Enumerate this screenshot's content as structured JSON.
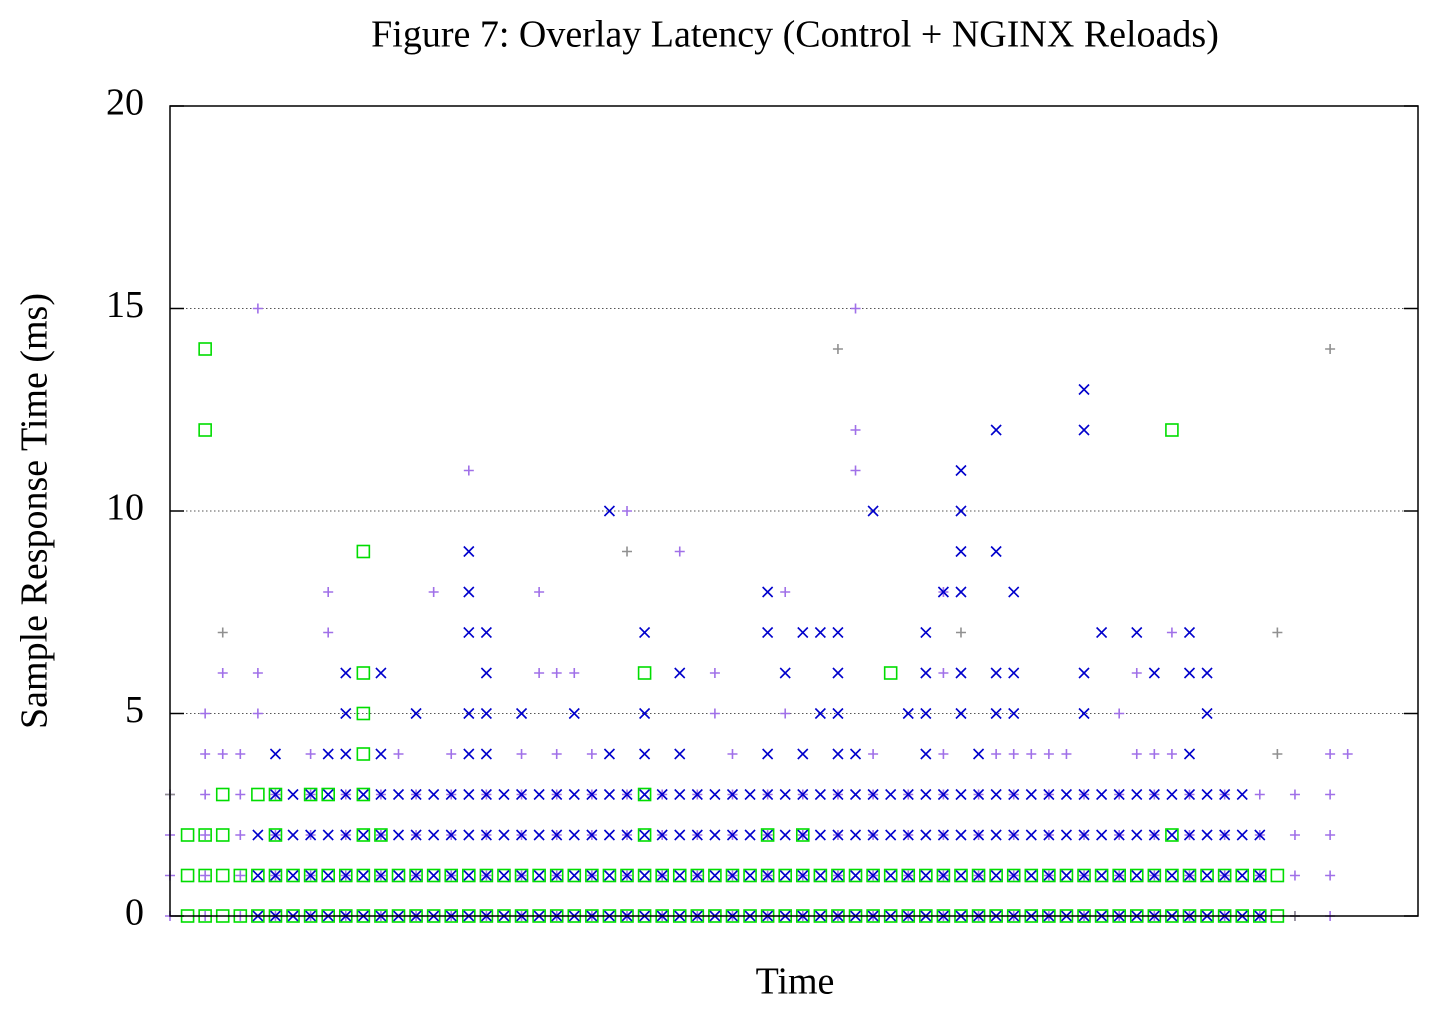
{
  "chart_data": {
    "type": "scatter",
    "title": "Figure 7: Overlay Latency (Control + NGINX Reloads)",
    "x_label": "Time",
    "y_label": "Sample Response Time (ms)",
    "xlim": [
      0,
      71
    ],
    "ylim": [
      0,
      20
    ],
    "yticks": [
      0,
      5,
      10,
      15,
      20
    ],
    "grid": true,
    "series": [
      {
        "color": "#a070e8",
        "marker": "plus",
        "x": [
          0,
          2,
          4,
          6,
          8,
          10,
          12,
          14,
          16,
          18,
          20,
          22,
          24,
          26,
          28,
          30,
          32,
          34,
          36,
          38,
          40,
          42,
          44,
          46,
          48,
          50,
          52,
          54,
          56,
          58,
          60,
          62,
          64,
          66,
          0,
          2,
          4,
          6,
          8,
          10,
          12,
          14,
          16,
          18,
          20,
          22,
          24,
          26,
          28,
          30,
          32,
          34,
          36,
          38,
          40,
          42,
          44,
          46,
          48,
          50,
          52,
          54,
          56,
          58,
          60,
          62,
          64,
          66,
          0,
          2,
          4,
          6,
          8,
          10,
          12,
          14,
          16,
          18,
          20,
          22,
          24,
          26,
          28,
          30,
          32,
          34,
          36,
          38,
          40,
          42,
          44,
          46,
          48,
          50,
          52,
          54,
          56,
          58,
          60,
          62,
          64,
          66,
          0,
          2,
          4,
          6,
          8,
          10,
          12,
          14,
          16,
          18,
          20,
          22,
          24,
          26,
          28,
          30,
          32,
          34,
          36,
          38,
          40,
          42,
          44,
          46,
          48,
          50,
          52,
          54,
          56,
          58,
          60,
          62,
          64,
          66,
          2,
          3,
          4,
          8,
          13,
          16,
          20,
          22,
          24,
          32,
          40,
          44,
          47,
          48,
          49,
          50,
          51,
          55,
          56,
          57,
          66,
          67,
          5,
          39,
          39,
          39,
          17,
          26,
          29,
          9,
          15,
          21,
          35,
          9,
          3,
          5,
          21,
          22,
          23,
          31,
          44,
          55,
          2,
          5,
          31,
          35,
          54,
          44,
          57
        ],
        "y": [
          0,
          0,
          0,
          0,
          0,
          0,
          0,
          0,
          0,
          0,
          0,
          0,
          0,
          0,
          0,
          0,
          0,
          0,
          0,
          0,
          0,
          0,
          0,
          0,
          0,
          0,
          0,
          0,
          0,
          0,
          0,
          0,
          0,
          0,
          1,
          1,
          1,
          1,
          1,
          1,
          1,
          1,
          1,
          1,
          1,
          1,
          1,
          1,
          1,
          1,
          1,
          1,
          1,
          1,
          1,
          1,
          1,
          1,
          1,
          1,
          1,
          1,
          1,
          1,
          1,
          1,
          1,
          1,
          2,
          2,
          2,
          2,
          2,
          2,
          2,
          2,
          2,
          2,
          2,
          2,
          2,
          2,
          2,
          2,
          2,
          2,
          2,
          2,
          2,
          2,
          2,
          2,
          2,
          2,
          2,
          2,
          2,
          2,
          2,
          2,
          2,
          2,
          3,
          3,
          3,
          3,
          3,
          3,
          3,
          3,
          3,
          3,
          3,
          3,
          3,
          3,
          3,
          3,
          3,
          3,
          3,
          3,
          3,
          3,
          3,
          3,
          3,
          3,
          3,
          3,
          3,
          3,
          3,
          3,
          3,
          3,
          4,
          4,
          4,
          4,
          4,
          4,
          4,
          4,
          4,
          4,
          4,
          4,
          4,
          4,
          4,
          4,
          4,
          4,
          4,
          4,
          4,
          4,
          15,
          15,
          12,
          11,
          11,
          10,
          9,
          8,
          8,
          8,
          8,
          7,
          6,
          6,
          6,
          6,
          6,
          6,
          6,
          6,
          5,
          5,
          5,
          5,
          5,
          8,
          7
        ]
      },
      {
        "color": "#909090",
        "marker": "plus",
        "x": [
          3,
          38,
          66,
          26,
          45,
          63,
          63,
          0,
          64
        ],
        "y": [
          7,
          14,
          14,
          9,
          7,
          7,
          4,
          3,
          0
        ]
      },
      {
        "color": "#0000cc",
        "marker": "cross",
        "x": [
          5,
          6,
          7,
          8,
          9,
          10,
          11,
          12,
          13,
          14,
          15,
          16,
          17,
          18,
          19,
          20,
          21,
          22,
          23,
          24,
          25,
          26,
          27,
          28,
          29,
          30,
          31,
          32,
          33,
          34,
          35,
          36,
          37,
          38,
          39,
          40,
          41,
          42,
          43,
          44,
          45,
          46,
          47,
          48,
          49,
          50,
          51,
          52,
          53,
          54,
          55,
          56,
          57,
          58,
          59,
          60,
          61,
          62,
          5,
          6,
          7,
          8,
          9,
          10,
          11,
          12,
          13,
          14,
          15,
          16,
          17,
          18,
          19,
          20,
          21,
          22,
          23,
          24,
          25,
          26,
          27,
          28,
          29,
          30,
          31,
          32,
          33,
          34,
          35,
          36,
          37,
          38,
          39,
          40,
          41,
          42,
          43,
          44,
          45,
          46,
          47,
          48,
          49,
          50,
          51,
          52,
          53,
          54,
          55,
          56,
          57,
          58,
          59,
          60,
          61,
          62,
          5,
          6,
          7,
          8,
          9,
          10,
          11,
          12,
          13,
          14,
          15,
          16,
          17,
          18,
          19,
          20,
          21,
          22,
          23,
          24,
          25,
          26,
          27,
          28,
          29,
          30,
          31,
          32,
          33,
          34,
          35,
          36,
          37,
          38,
          39,
          40,
          41,
          42,
          43,
          44,
          45,
          46,
          47,
          48,
          49,
          50,
          51,
          52,
          53,
          54,
          55,
          56,
          57,
          58,
          59,
          60,
          61,
          62,
          6,
          7,
          8,
          9,
          10,
          11,
          12,
          13,
          14,
          15,
          16,
          17,
          18,
          19,
          20,
          21,
          22,
          23,
          24,
          25,
          26,
          27,
          28,
          29,
          30,
          31,
          32,
          33,
          34,
          35,
          36,
          37,
          38,
          39,
          40,
          41,
          42,
          43,
          44,
          45,
          46,
          47,
          48,
          49,
          50,
          51,
          52,
          53,
          54,
          55,
          56,
          57,
          58,
          59,
          60,
          61,
          6,
          9,
          10,
          12,
          17,
          18,
          25,
          27,
          29,
          34,
          36,
          38,
          39,
          43,
          46,
          58,
          10,
          10,
          12,
          14,
          17,
          17,
          17,
          18,
          18,
          17,
          18,
          20,
          23,
          25,
          27,
          27,
          29,
          34,
          34,
          35,
          36,
          37,
          38,
          37,
          38,
          38,
          40,
          42,
          43,
          43,
          43,
          44,
          45,
          45,
          45,
          45,
          45,
          45,
          47,
          47,
          47,
          47,
          48,
          48,
          48,
          52,
          52,
          52,
          52,
          53,
          55,
          56,
          58,
          58,
          59,
          59
        ],
        "y": [
          0,
          0,
          0,
          0,
          0,
          0,
          0,
          0,
          0,
          0,
          0,
          0,
          0,
          0,
          0,
          0,
          0,
          0,
          0,
          0,
          0,
          0,
          0,
          0,
          0,
          0,
          0,
          0,
          0,
          0,
          0,
          0,
          0,
          0,
          0,
          0,
          0,
          0,
          0,
          0,
          0,
          0,
          0,
          0,
          0,
          0,
          0,
          0,
          0,
          0,
          0,
          0,
          0,
          0,
          0,
          0,
          0,
          0,
          1,
          1,
          1,
          1,
          1,
          1,
          1,
          1,
          1,
          1,
          1,
          1,
          1,
          1,
          1,
          1,
          1,
          1,
          1,
          1,
          1,
          1,
          1,
          1,
          1,
          1,
          1,
          1,
          1,
          1,
          1,
          1,
          1,
          1,
          1,
          1,
          1,
          1,
          1,
          1,
          1,
          1,
          1,
          1,
          1,
          1,
          1,
          1,
          1,
          1,
          1,
          1,
          1,
          1,
          1,
          1,
          1,
          1,
          2,
          2,
          2,
          2,
          2,
          2,
          2,
          2,
          2,
          2,
          2,
          2,
          2,
          2,
          2,
          2,
          2,
          2,
          2,
          2,
          2,
          2,
          2,
          2,
          2,
          2,
          2,
          2,
          2,
          2,
          2,
          2,
          2,
          2,
          2,
          2,
          2,
          2,
          2,
          2,
          2,
          2,
          2,
          2,
          2,
          2,
          2,
          2,
          2,
          2,
          2,
          2,
          2,
          2,
          2,
          2,
          2,
          2,
          3,
          3,
          3,
          3,
          3,
          3,
          3,
          3,
          3,
          3,
          3,
          3,
          3,
          3,
          3,
          3,
          3,
          3,
          3,
          3,
          3,
          3,
          3,
          3,
          3,
          3,
          3,
          3,
          3,
          3,
          3,
          3,
          3,
          3,
          3,
          3,
          3,
          3,
          3,
          3,
          3,
          3,
          3,
          3,
          3,
          3,
          3,
          3,
          3,
          3,
          3,
          3,
          3,
          3,
          3,
          3,
          4,
          4,
          4,
          4,
          4,
          4,
          4,
          4,
          4,
          4,
          4,
          4,
          4,
          4,
          4,
          4,
          5,
          6,
          6,
          5,
          9,
          8,
          7,
          7,
          6,
          5,
          5,
          5,
          5,
          10,
          7,
          5,
          6,
          8,
          7,
          6,
          7,
          5,
          5,
          7,
          7,
          6,
          10,
          5,
          5,
          7,
          6,
          8,
          11,
          10,
          9,
          8,
          6,
          5,
          12,
          9,
          6,
          5,
          8,
          6,
          5,
          13,
          12,
          6,
          5,
          7,
          7,
          6,
          7,
          6,
          6,
          5
        ]
      },
      {
        "color": "#00dd00",
        "marker": "square",
        "x": [
          1,
          2,
          3,
          4,
          5,
          6,
          7,
          8,
          9,
          10,
          11,
          12,
          13,
          14,
          15,
          16,
          17,
          18,
          19,
          20,
          21,
          22,
          23,
          24,
          25,
          26,
          27,
          28,
          29,
          30,
          31,
          32,
          33,
          34,
          35,
          36,
          37,
          38,
          39,
          40,
          41,
          42,
          43,
          44,
          45,
          46,
          47,
          48,
          49,
          50,
          51,
          52,
          53,
          54,
          55,
          56,
          57,
          58,
          59,
          60,
          61,
          62,
          63,
          1,
          2,
          3,
          4,
          5,
          6,
          7,
          8,
          9,
          10,
          11,
          12,
          13,
          14,
          15,
          16,
          17,
          18,
          19,
          20,
          21,
          22,
          23,
          24,
          25,
          26,
          27,
          28,
          29,
          30,
          31,
          32,
          33,
          34,
          35,
          36,
          37,
          38,
          39,
          40,
          41,
          42,
          43,
          44,
          45,
          46,
          47,
          48,
          49,
          50,
          51,
          52,
          53,
          54,
          55,
          56,
          57,
          58,
          59,
          60,
          61,
          62,
          63,
          1,
          2,
          3,
          6,
          11,
          12,
          27,
          34,
          36,
          57,
          3,
          5,
          6,
          8,
          9,
          11,
          27,
          11,
          11,
          11,
          27,
          41,
          11,
          2,
          2,
          57
        ],
        "y": [
          0,
          0,
          0,
          0,
          0,
          0,
          0,
          0,
          0,
          0,
          0,
          0,
          0,
          0,
          0,
          0,
          0,
          0,
          0,
          0,
          0,
          0,
          0,
          0,
          0,
          0,
          0,
          0,
          0,
          0,
          0,
          0,
          0,
          0,
          0,
          0,
          0,
          0,
          0,
          0,
          0,
          0,
          0,
          0,
          0,
          0,
          0,
          0,
          0,
          0,
          0,
          0,
          0,
          0,
          0,
          0,
          0,
          0,
          0,
          0,
          0,
          0,
          0,
          1,
          1,
          1,
          1,
          1,
          1,
          1,
          1,
          1,
          1,
          1,
          1,
          1,
          1,
          1,
          1,
          1,
          1,
          1,
          1,
          1,
          1,
          1,
          1,
          1,
          1,
          1,
          1,
          1,
          1,
          1,
          1,
          1,
          1,
          1,
          1,
          1,
          1,
          1,
          1,
          1,
          1,
          1,
          1,
          1,
          1,
          1,
          1,
          1,
          1,
          1,
          1,
          1,
          1,
          1,
          1,
          1,
          1,
          1,
          1,
          1,
          1,
          1,
          2,
          2,
          2,
          2,
          2,
          2,
          2,
          2,
          2,
          2,
          3,
          3,
          3,
          3,
          3,
          3,
          3,
          4,
          5,
          6,
          6,
          6,
          9,
          12,
          14,
          12
        ]
      }
    ]
  }
}
